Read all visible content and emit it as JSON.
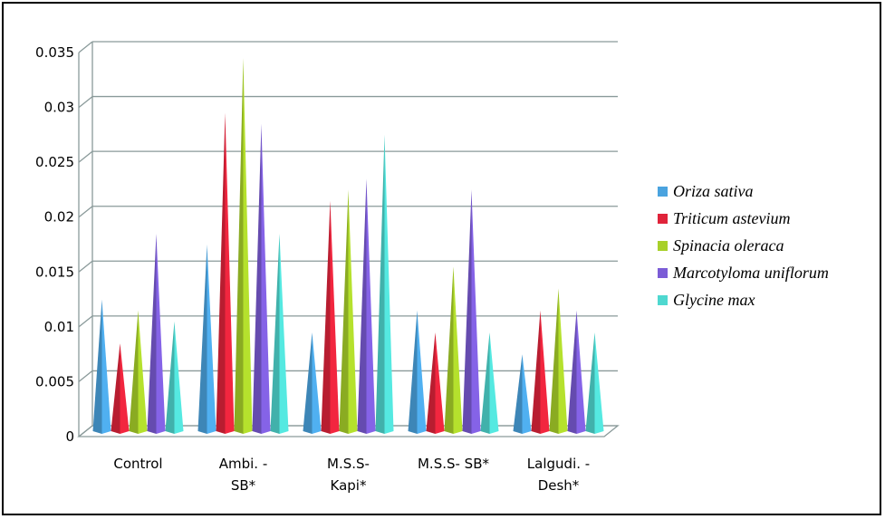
{
  "chart_data": {
    "type": "bar",
    "title": "",
    "xlabel": "",
    "ylabel": "",
    "ylim": [
      0,
      0.035
    ],
    "yticks": [
      "0",
      "0.005",
      "0.01",
      "0.015",
      "0.02",
      "0.025",
      "0.03",
      "0.035"
    ],
    "grid": true,
    "legend_position": "right",
    "categories": [
      [
        "Control"
      ],
      [
        "Ambi. -",
        "SB*"
      ],
      [
        "M.S.S-",
        "Kapi*"
      ],
      [
        "M.S.S- SB*"
      ],
      [
        "Lalgudi. -",
        "Desh*"
      ]
    ],
    "series": [
      {
        "name": "Oriza sativa",
        "color": "#4aa3df",
        "values": [
          0.012,
          0.017,
          0.009,
          0.011,
          0.007
        ]
      },
      {
        "name": "Triticum astevium",
        "color": "#e0233a",
        "values": [
          0.008,
          0.029,
          0.021,
          0.009,
          0.011
        ]
      },
      {
        "name": "Spinacia oleraca",
        "color": "#a8d02a",
        "values": [
          0.011,
          0.034,
          0.022,
          0.015,
          0.013
        ]
      },
      {
        "name": "Marcotyloma uniflorum",
        "color": "#7b5cd6",
        "values": [
          0.018,
          0.028,
          0.023,
          0.022,
          0.011
        ]
      },
      {
        "name": "Glycine max",
        "color": "#4fd8d0",
        "values": [
          0.01,
          0.018,
          0.027,
          0.009,
          0.009
        ]
      }
    ]
  }
}
